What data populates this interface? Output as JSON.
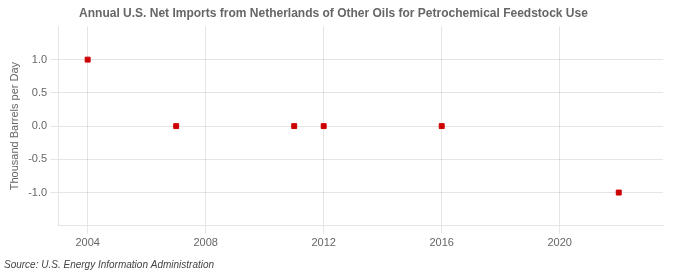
{
  "chart_data": {
    "type": "scatter",
    "title": "Annual U.S. Net Imports from Netherlands of Other Oils for Petrochemical Feedstock Use",
    "y_label": "Thousand Barrels per Day",
    "annotations": [
      "Source: U.S. Energy Information Administration"
    ],
    "x": [
      2004,
      2007,
      2011,
      2012,
      2016,
      2022
    ],
    "values": [
      1.0,
      0.0,
      0.0,
      0.0,
      0.0,
      -1.0
    ],
    "color": "#cc0000",
    "marker": "square",
    "xlim": [
      2003.0,
      2023.5
    ],
    "xticks": [
      2004,
      2008,
      2012,
      2016,
      2020
    ],
    "ylim": [
      -1.5,
      1.5
    ],
    "yticks": [
      {
        "value": -1.0,
        "label": "-1.0"
      },
      {
        "value": -0.5,
        "label": "-0.5"
      },
      {
        "value": 0.0,
        "label": "0.0"
      },
      {
        "value": 0.5,
        "label": "0.5"
      },
      {
        "value": 1.0,
        "label": "1.0"
      }
    ],
    "grid": true
  }
}
